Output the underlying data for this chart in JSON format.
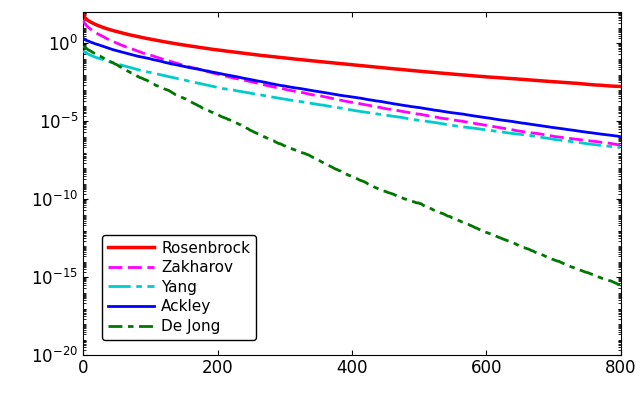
{
  "xlim": [
    0,
    800
  ],
  "ylim_log": [
    -20,
    2
  ],
  "n_points": 800,
  "series_order": [
    "Ackley",
    "De Jong",
    "Rosenbrock",
    "Yang",
    "Zakharov"
  ],
  "colors": {
    "Ackley": "#0000FF",
    "De Jong": "#007700",
    "Rosenbrock": "#FF0000",
    "Yang": "#00CCCC",
    "Zakharov": "#FF00FF"
  },
  "linewidths": {
    "Ackley": 2.0,
    "De Jong": 2.0,
    "Rosenbrock": 2.5,
    "Yang": 2.0,
    "Zakharov": 2.0
  },
  "curve_params": {
    "Ackley": {
      "start_exp": 0.3,
      "end_exp": -6.0,
      "power": 0.75,
      "noise": 0.04
    },
    "De Jong": {
      "start_exp": -0.2,
      "end_exp": -15.5,
      "power": 0.9,
      "noise": 0.05
    },
    "Rosenbrock": {
      "start_exp": 1.9,
      "end_exp": -2.8,
      "power": 0.5,
      "noise": 0.03
    },
    "Yang": {
      "start_exp": -0.5,
      "end_exp": -6.8,
      "power": 0.72,
      "noise": 0.04
    },
    "Zakharov": {
      "start_exp": 1.5,
      "end_exp": -6.5,
      "power": 0.6,
      "noise": 0.04
    }
  },
  "xticks": [
    0,
    200,
    400,
    600,
    800
  ],
  "ytick_exps": [
    0,
    -5,
    -10,
    -15,
    -20
  ],
  "legend_loc": "lower left",
  "background": "#FFFFFF"
}
